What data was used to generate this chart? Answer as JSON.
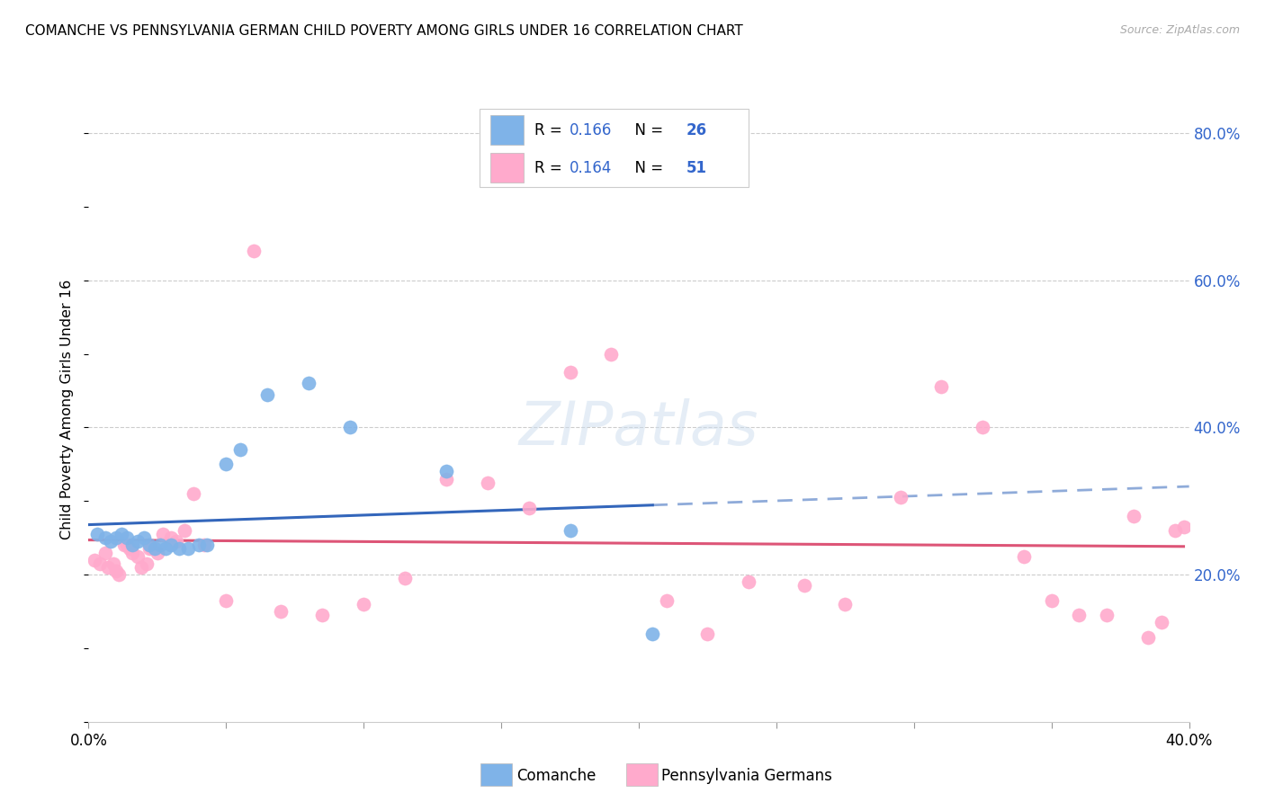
{
  "title": "COMANCHE VS PENNSYLVANIA GERMAN CHILD POVERTY AMONG GIRLS UNDER 16 CORRELATION CHART",
  "source": "Source: ZipAtlas.com",
  "ylabel": "Child Poverty Among Girls Under 16",
  "xlim": [
    0.0,
    0.4
  ],
  "ylim": [
    0.0,
    0.85
  ],
  "xtick_vals": [
    0.0,
    0.05,
    0.1,
    0.15,
    0.2,
    0.25,
    0.3,
    0.35,
    0.4
  ],
  "ytick_vals_right": [
    0.2,
    0.4,
    0.6,
    0.8
  ],
  "legend_R1": "0.166",
  "legend_N1": "26",
  "legend_R2": "0.164",
  "legend_N2": "51",
  "comanche_color": "#7fb3e8",
  "pennger_color": "#ffaacc",
  "trend_color_comanche": "#3366bb",
  "trend_color_pennger": "#dd5577",
  "blue_text": "#3366cc",
  "comanche_x": [
    0.003,
    0.006,
    0.008,
    0.01,
    0.012,
    0.014,
    0.016,
    0.018,
    0.02,
    0.022,
    0.024,
    0.026,
    0.028,
    0.03,
    0.033,
    0.036,
    0.04,
    0.043,
    0.05,
    0.055,
    0.065,
    0.08,
    0.095,
    0.13,
    0.175,
    0.205
  ],
  "comanche_y": [
    0.255,
    0.25,
    0.245,
    0.25,
    0.255,
    0.25,
    0.24,
    0.245,
    0.25,
    0.24,
    0.235,
    0.24,
    0.235,
    0.24,
    0.235,
    0.235,
    0.24,
    0.24,
    0.35,
    0.37,
    0.445,
    0.46,
    0.4,
    0.34,
    0.26,
    0.12
  ],
  "pennger_x": [
    0.002,
    0.004,
    0.006,
    0.007,
    0.009,
    0.01,
    0.011,
    0.013,
    0.014,
    0.015,
    0.016,
    0.018,
    0.019,
    0.021,
    0.022,
    0.023,
    0.025,
    0.027,
    0.03,
    0.032,
    0.035,
    0.038,
    0.042,
    0.05,
    0.06,
    0.07,
    0.085,
    0.1,
    0.115,
    0.13,
    0.145,
    0.16,
    0.175,
    0.19,
    0.21,
    0.225,
    0.24,
    0.26,
    0.275,
    0.295,
    0.31,
    0.325,
    0.34,
    0.35,
    0.36,
    0.37,
    0.38,
    0.385,
    0.39,
    0.395,
    0.398
  ],
  "pennger_y": [
    0.22,
    0.215,
    0.23,
    0.21,
    0.215,
    0.205,
    0.2,
    0.24,
    0.24,
    0.235,
    0.23,
    0.225,
    0.21,
    0.215,
    0.235,
    0.235,
    0.23,
    0.255,
    0.25,
    0.245,
    0.26,
    0.31,
    0.24,
    0.165,
    0.64,
    0.15,
    0.145,
    0.16,
    0.195,
    0.33,
    0.325,
    0.29,
    0.475,
    0.5,
    0.165,
    0.12,
    0.19,
    0.185,
    0.16,
    0.305,
    0.455,
    0.4,
    0.225,
    0.165,
    0.145,
    0.145,
    0.28,
    0.115,
    0.135,
    0.26,
    0.265
  ]
}
